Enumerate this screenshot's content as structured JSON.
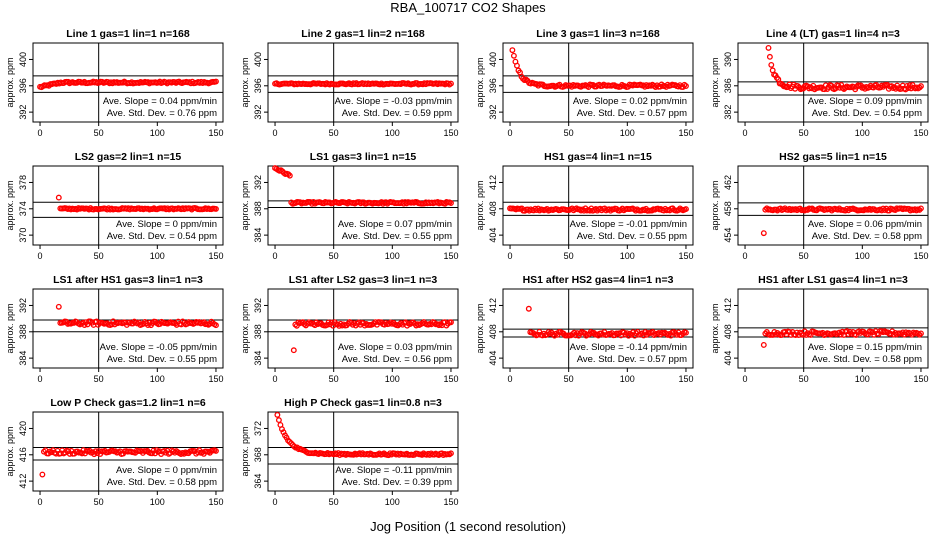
{
  "title": "RBA_100717  CO2 Shapes",
  "xlabel": "Jog Position (1 second resolution)",
  "chart_data": [
    {
      "type": "scatter",
      "title": "Line 1 gas=1 lin=1 n=168",
      "ylabel": "approx. ppm",
      "yticks": [
        392,
        396,
        400
      ],
      "ylim": [
        390.5,
        402.5
      ],
      "xticks": [
        0,
        50,
        100,
        150
      ],
      "xlim": [
        -6,
        156
      ],
      "vline": 50,
      "hlines": [
        397.5,
        395.0
      ],
      "slope_label": "Ave. Slope = 0.04 ppm/min",
      "std_label": "Ave. Std. Dev. = 0.76 ppm",
      "points": {
        "x0": 0,
        "x1": 150,
        "n": 120,
        "shape": "ramp",
        "a": 395.8,
        "b": 396.5,
        "noise": 0.15,
        "rampEnd": 18
      }
    },
    {
      "type": "scatter",
      "title": "Line 2 gas=1 lin=2 n=168",
      "ylabel": "approx. ppm",
      "yticks": [
        392,
        396,
        400
      ],
      "ylim": [
        390.5,
        402.5
      ],
      "xticks": [
        0,
        50,
        100,
        150
      ],
      "xlim": [
        -6,
        156
      ],
      "vline": 50,
      "hlines": [
        397.5,
        395.0
      ],
      "slope_label": "Ave. Slope = -0.03 ppm/min",
      "std_label": "Ave. Std. Dev. = 0.59 ppm",
      "points": {
        "x0": 0,
        "x1": 150,
        "n": 120,
        "shape": "flat",
        "a": 396.3,
        "noise": 0.12
      }
    },
    {
      "type": "scatter",
      "title": "Line 3 gas=1 lin=3 n=168",
      "ylabel": "approx. ppm",
      "yticks": [
        392,
        396,
        400
      ],
      "ylim": [
        390.5,
        402.5
      ],
      "xticks": [
        0,
        50,
        100,
        150
      ],
      "xlim": [
        -6,
        156
      ],
      "vline": 50,
      "hlines": [
        397.5,
        395.0
      ],
      "slope_label": "Ave. Slope = 0.02 ppm/min",
      "std_label": "Ave. Std. Dev. = 0.57 ppm",
      "points": {
        "x0": 2,
        "x1": 150,
        "n": 115,
        "shape": "decay",
        "a": 396.0,
        "b": 401.5,
        "noise": 0.2,
        "tau": 6
      }
    },
    {
      "type": "scatter",
      "title": "Line 4 (LT) gas=1 lin=4 n=3",
      "ylabel": "approx. ppm",
      "yticks": [
        382,
        386,
        390
      ],
      "ylim": [
        380.5,
        392.5
      ],
      "xticks": [
        0,
        50,
        100,
        150
      ],
      "xlim": [
        -6,
        156
      ],
      "vline": 50,
      "hlines": [
        386.6,
        384.6
      ],
      "slope_label": "Ave. Slope = 0.09 ppm/min",
      "std_label": "Ave. Std. Dev. = 0.54 ppm",
      "points": {
        "x0": 20,
        "x1": 150,
        "n": 110,
        "shape": "decay",
        "a": 385.8,
        "b": 391.5,
        "noise": 0.35,
        "tau": 5
      }
    },
    {
      "type": "scatter",
      "title": "LS2 gas=2 lin=1 n=15",
      "ylabel": "approx. ppm",
      "yticks": [
        370,
        374,
        378
      ],
      "ylim": [
        368.5,
        380.5
      ],
      "xticks": [
        0,
        50,
        100,
        150
      ],
      "xlim": [
        -6,
        156
      ],
      "vline": 50,
      "hlines": [
        375.0,
        372.7
      ],
      "slope_label": "Ave. Slope = 0 ppm/min",
      "std_label": "Ave. Std. Dev. = 0.54 ppm",
      "points": {
        "x0": 16,
        "x1": 150,
        "n": 105,
        "shape": "flat",
        "a": 374.0,
        "noise": 0.12,
        "first": 375.7
      }
    },
    {
      "type": "scatter",
      "title": "LS1 gas=3 lin=1 n=15",
      "ylabel": "approx. ppm",
      "yticks": [
        384,
        388,
        392
      ],
      "ylim": [
        382.5,
        394.5
      ],
      "xticks": [
        0,
        50,
        100,
        150
      ],
      "xlim": [
        -6,
        156
      ],
      "vline": 50,
      "hlines": [
        389.2,
        388.2
      ],
      "slope_label": "Ave. Slope = 0.07 ppm/min",
      "std_label": "Ave. Std. Dev. = 0.55 ppm",
      "points": {
        "x0": 0,
        "x1": 150,
        "n": 120,
        "shape": "step",
        "a": 388.9,
        "b": 394.2,
        "noise": 0.15,
        "stepAt": 13
      }
    },
    {
      "type": "scatter",
      "title": "HS1 gas=4 lin=1 n=15",
      "ylabel": "approx. ppm",
      "yticks": [
        404,
        408,
        412
      ],
      "ylim": [
        402.5,
        414.5
      ],
      "xticks": [
        0,
        50,
        100,
        150
      ],
      "xlim": [
        -6,
        156
      ],
      "vline": 50,
      "hlines": [
        409.0,
        407.0
      ],
      "slope_label": "Ave. Slope = -0.01 ppm/min",
      "std_label": "Ave. Std. Dev. = 0.55 ppm",
      "points": {
        "x0": 0,
        "x1": 150,
        "n": 120,
        "shape": "flat",
        "a": 407.9,
        "noise": 0.2
      }
    },
    {
      "type": "scatter",
      "title": "HS2 gas=5 lin=1 n=15",
      "ylabel": "approx. ppm",
      "yticks": [
        454,
        458,
        462
      ],
      "ylim": [
        452.5,
        464.5
      ],
      "xticks": [
        0,
        50,
        100,
        150
      ],
      "xlim": [
        -6,
        156
      ],
      "vline": 50,
      "hlines": [
        458.9,
        457.0
      ],
      "slope_label": "Ave. Slope = 0.06 ppm/min",
      "std_label": "Ave. Std. Dev. = 0.58 ppm",
      "points": {
        "x0": 16,
        "x1": 150,
        "n": 105,
        "shape": "flat",
        "a": 457.9,
        "noise": 0.18,
        "first": 454.3
      }
    },
    {
      "type": "scatter",
      "title": "LS1 after HS1 gas=3 lin=1 n=3",
      "ylabel": "approx. ppm",
      "yticks": [
        384,
        388,
        392
      ],
      "ylim": [
        382.5,
        394.5
      ],
      "xticks": [
        0,
        50,
        100,
        150
      ],
      "xlim": [
        -6,
        156
      ],
      "vline": 50,
      "hlines": [
        389.8,
        388.0
      ],
      "slope_label": "Ave. Slope = -0.05 ppm/min",
      "std_label": "Ave. Std. Dev. = 0.55 ppm",
      "points": {
        "x0": 16,
        "x1": 150,
        "n": 105,
        "shape": "flat",
        "a": 389.3,
        "noise": 0.3,
        "first": 391.8
      }
    },
    {
      "type": "scatter",
      "title": "LS1 after LS2 gas=3 lin=1 n=3",
      "ylabel": "approx. ppm",
      "yticks": [
        384,
        388,
        392
      ],
      "ylim": [
        382.5,
        394.5
      ],
      "xticks": [
        0,
        50,
        100,
        150
      ],
      "xlim": [
        -6,
        156
      ],
      "vline": 50,
      "hlines": [
        389.8,
        388.0
      ],
      "slope_label": "Ave. Slope = 0.03 ppm/min",
      "std_label": "Ave. Std. Dev. = 0.56 ppm",
      "points": {
        "x0": 16,
        "x1": 150,
        "n": 105,
        "shape": "flat",
        "a": 389.2,
        "noise": 0.3,
        "first": 385.2
      }
    },
    {
      "type": "scatter",
      "title": "HS1 after HS2 gas=4 lin=1 n=3",
      "ylabel": "approx. ppm",
      "yticks": [
        404,
        408,
        412
      ],
      "ylim": [
        402.5,
        414.5
      ],
      "xticks": [
        0,
        50,
        100,
        150
      ],
      "xlim": [
        -6,
        156
      ],
      "vline": 50,
      "hlines": [
        408.4,
        407.2
      ],
      "slope_label": "Ave. Slope = -0.14 ppm/min",
      "std_label": "Ave. Std. Dev. = 0.57 ppm",
      "points": {
        "x0": 16,
        "x1": 150,
        "n": 105,
        "shape": "flat",
        "a": 407.7,
        "noise": 0.3,
        "first": 411.5
      }
    },
    {
      "type": "scatter",
      "title": "HS1 after LS1 gas=4 lin=1 n=3",
      "ylabel": "approx. ppm",
      "yticks": [
        404,
        408,
        412
      ],
      "ylim": [
        402.5,
        414.5
      ],
      "xticks": [
        0,
        50,
        100,
        150
      ],
      "xlim": [
        -6,
        156
      ],
      "vline": 50,
      "hlines": [
        408.6,
        407.2
      ],
      "slope_label": "Ave. Slope = 0.15 ppm/min",
      "std_label": "Ave. Std. Dev. = 0.58 ppm",
      "points": {
        "x0": 16,
        "x1": 150,
        "n": 105,
        "shape": "flat",
        "a": 407.8,
        "noise": 0.3,
        "first": 406.0
      }
    },
    {
      "type": "scatter",
      "title": "Low P Check gas=1.2 lin=1 n=6",
      "ylabel": "approx. ppm",
      "yticks": [
        412,
        416,
        420
      ],
      "ylim": [
        410.5,
        422.5
      ],
      "xticks": [
        0,
        50,
        100,
        150
      ],
      "xlim": [
        -6,
        156
      ],
      "vline": 50,
      "hlines": [
        417.1,
        415.2
      ],
      "slope_label": "Ave. Slope = 0 ppm/min",
      "std_label": "Ave. Std. Dev. = 0.58 ppm",
      "points": {
        "x0": 2,
        "x1": 150,
        "n": 115,
        "shape": "flat",
        "a": 416.4,
        "noise": 0.3,
        "first": 413.0
      }
    },
    {
      "type": "scatter",
      "title": "High P Check gas=1 lin=0.8 n=3",
      "ylabel": "approx. ppm",
      "yticks": [
        364,
        368,
        372
      ],
      "ylim": [
        362.5,
        374.5
      ],
      "xticks": [
        0,
        50,
        100,
        150
      ],
      "xlim": [
        -6,
        156
      ],
      "vline": 50,
      "hlines": [
        369.1,
        366.6
      ],
      "slope_label": "Ave. Slope = -0.11 ppm/min",
      "std_label": "Ave. Std. Dev. = 0.39 ppm",
      "points": {
        "x0": 2,
        "x1": 150,
        "n": 115,
        "shape": "decay",
        "a": 368.1,
        "b": 374.0,
        "noise": 0.15,
        "tau": 9
      }
    }
  ]
}
